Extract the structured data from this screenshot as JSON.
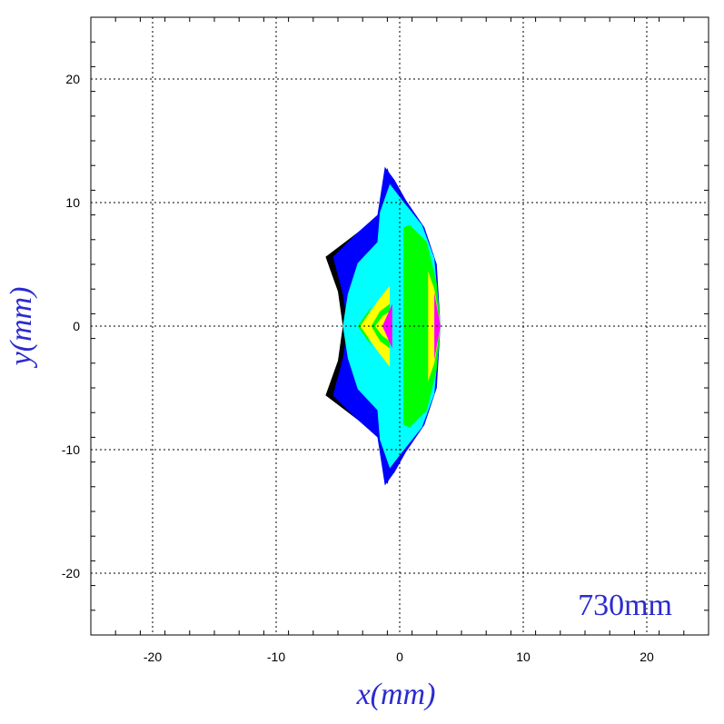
{
  "chart_data": {
    "type": "heatmap",
    "title": "",
    "xlabel": "x(mm)",
    "ylabel": "y(mm)",
    "xlim": [
      -25,
      25
    ],
    "ylim": [
      -25,
      25
    ],
    "xticks": [
      -20,
      -10,
      0,
      10,
      20
    ],
    "yticks": [
      -20,
      -10,
      0,
      10,
      20
    ],
    "xtick_labels": [
      "-20",
      "-10",
      "0",
      "10",
      "20"
    ],
    "ytick_labels": [
      "-20",
      "-10",
      "0",
      "10",
      "20"
    ],
    "grid": true,
    "annotation": "730mm",
    "colors": {
      "band_outer": "#000000",
      "band_2": "#0000ff",
      "band_3": "#00ffff",
      "band_4": "#00ff00",
      "band_5": "#ffff00",
      "band_inner": "#ff00ff",
      "axis_title": "#2b2bd0",
      "grid": "#000000"
    },
    "regions": [
      {
        "color": "#000000",
        "points": [
          [
            -6.0,
            5.6
          ],
          [
            -1.8,
            8.8
          ],
          [
            -1.0,
            12.8
          ],
          [
            -0.6,
            11.5
          ],
          [
            -0.8,
            9.0
          ],
          [
            -4.2,
            0
          ],
          [
            -0.8,
            -9.0
          ],
          [
            -0.6,
            -11.5
          ],
          [
            -1.0,
            -12.8
          ],
          [
            -1.8,
            -8.8
          ],
          [
            -6.0,
            -5.6
          ],
          [
            -5.0,
            -2.8
          ],
          [
            -4.6,
            0
          ],
          [
            -5.0,
            2.8
          ]
        ]
      },
      {
        "color": "#0000ff",
        "points": [
          [
            -5.4,
            5.6
          ],
          [
            -3.6,
            7.4
          ],
          [
            -1.8,
            9.0
          ],
          [
            -1.2,
            12.9
          ],
          [
            -0.4,
            11.8
          ],
          [
            0.5,
            10.2
          ],
          [
            2.0,
            8.0
          ],
          [
            3.0,
            5.0
          ],
          [
            3.3,
            0
          ],
          [
            3.0,
            -5.0
          ],
          [
            2.0,
            -8.0
          ],
          [
            0.5,
            -10.2
          ],
          [
            -0.4,
            -11.8
          ],
          [
            -1.2,
            -12.9
          ],
          [
            -1.8,
            -9.0
          ],
          [
            -3.6,
            -7.4
          ],
          [
            -5.4,
            -5.6
          ],
          [
            -4.6,
            -2.6
          ],
          [
            -4.2,
            0
          ],
          [
            -4.6,
            2.6
          ]
        ]
      },
      {
        "color": "#00ffff",
        "points": [
          [
            -4.2,
            2.6
          ],
          [
            -3.4,
            5.1
          ],
          [
            -1.8,
            6.8
          ],
          [
            -1.6,
            9.2
          ],
          [
            -0.8,
            11.5
          ],
          [
            0.2,
            10.2
          ],
          [
            1.8,
            8.2
          ],
          [
            2.8,
            5.5
          ],
          [
            3.3,
            0
          ],
          [
            2.8,
            -5.5
          ],
          [
            1.8,
            -8.2
          ],
          [
            0.2,
            -10.2
          ],
          [
            -0.8,
            -11.5
          ],
          [
            -1.6,
            -9.2
          ],
          [
            -1.8,
            -6.8
          ],
          [
            -3.4,
            -5.1
          ],
          [
            -4.2,
            -2.6
          ],
          [
            -4.6,
            0
          ]
        ]
      },
      {
        "color": "#00ff00",
        "points": [
          [
            -3.4,
            0
          ],
          [
            -1.8,
            2.3
          ],
          [
            -0.8,
            2.8
          ],
          [
            -0.8,
            7.5
          ],
          [
            0.8,
            8.2
          ],
          [
            2.2,
            6.8
          ],
          [
            3.0,
            3.5
          ],
          [
            3.3,
            0
          ],
          [
            3.0,
            -3.5
          ],
          [
            2.2,
            -6.8
          ],
          [
            0.8,
            -8.2
          ],
          [
            -0.8,
            -7.5
          ],
          [
            -0.8,
            -2.8
          ],
          [
            -1.8,
            -2.3
          ]
        ]
      },
      {
        "color": "#00ffff",
        "points": [
          [
            -1.0,
            9.8
          ],
          [
            -0.7,
            10.8
          ],
          [
            0.3,
            9.4
          ],
          [
            0.3,
            -9.4
          ],
          [
            -0.7,
            -10.8
          ],
          [
            -1.0,
            -9.8
          ]
        ]
      },
      {
        "color": "#00ffff",
        "points": [
          [
            -3.0,
            0
          ],
          [
            -1.8,
            2.6
          ],
          [
            -0.8,
            5.0
          ],
          [
            -0.8,
            2.8
          ],
          [
            -1.8,
            2.0
          ],
          [
            -2.4,
            0
          ],
          [
            -1.8,
            -2.0
          ],
          [
            -0.8,
            -2.8
          ],
          [
            -0.8,
            -5.0
          ],
          [
            -1.8,
            -2.6
          ]
        ]
      },
      {
        "color": "#ffff00",
        "points": [
          [
            -3.2,
            0
          ],
          [
            -1.8,
            2.0
          ],
          [
            -0.8,
            3.3
          ],
          [
            -0.8,
            -3.3
          ],
          [
            -1.8,
            -2.0
          ]
        ]
      },
      {
        "color": "#ffff00",
        "points": [
          [
            2.0,
            5.3
          ],
          [
            2.8,
            3.0
          ],
          [
            3.3,
            0
          ],
          [
            2.8,
            -3.0
          ],
          [
            2.0,
            -5.3
          ]
        ]
      },
      {
        "color": "#00ff00",
        "points": [
          [
            -2.3,
            0
          ],
          [
            -1.6,
            1.2
          ],
          [
            -0.8,
            1.8
          ],
          [
            -0.8,
            -1.8
          ],
          [
            -1.6,
            -1.2
          ]
        ]
      },
      {
        "color": "#ffff00",
        "points": [
          [
            -2.0,
            0
          ],
          [
            -1.4,
            0.8
          ],
          [
            -0.8,
            1.2
          ],
          [
            -0.8,
            -1.2
          ],
          [
            -1.4,
            -0.8
          ]
        ]
      },
      {
        "color": "#ff00ff",
        "points": [
          [
            -1.4,
            0
          ],
          [
            -0.6,
            1.8
          ],
          [
            -0.6,
            -1.8
          ]
        ]
      },
      {
        "color": "#ff00ff",
        "points": [
          [
            2.8,
            2.7
          ],
          [
            3.3,
            0
          ],
          [
            2.8,
            -2.7
          ]
        ]
      }
    ],
    "stripes": [
      {
        "color": "#00ff00",
        "x0": 0.4,
        "x1": 1.2,
        "y_half": 7.8
      },
      {
        "color": "#00ff00",
        "x0": 1.6,
        "x1": 2.3,
        "y_half": 6.3
      }
    ]
  }
}
